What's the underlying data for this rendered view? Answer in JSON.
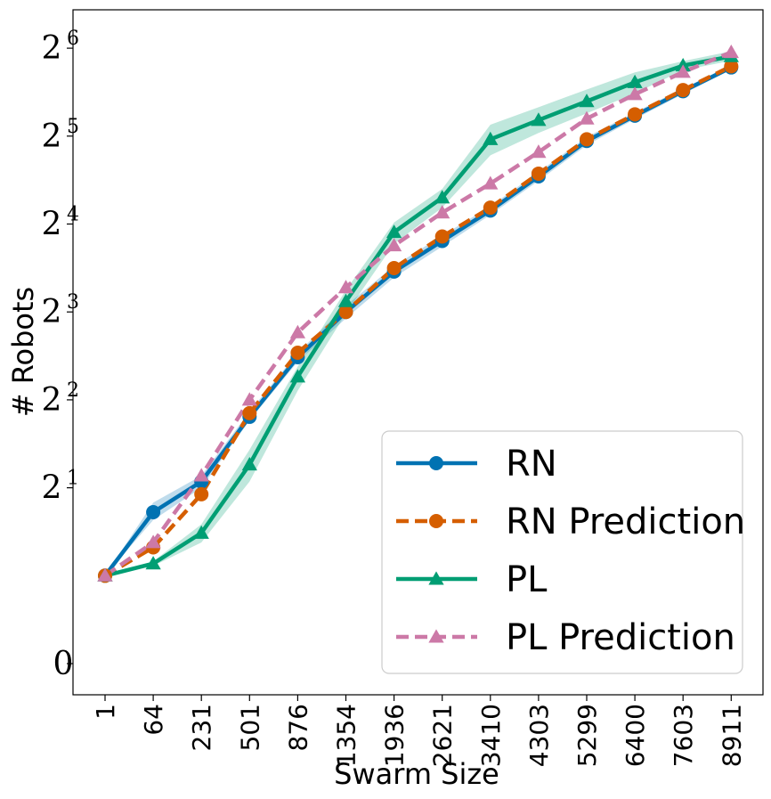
{
  "chart_data": {
    "type": "line",
    "xlabel": "Swarm Size",
    "ylabel": "# Robots",
    "categories": [
      "1",
      "64",
      "231",
      "501",
      "876",
      "1354",
      "1936",
      "2621",
      "3410",
      "4303",
      "5299",
      "6400",
      "7603",
      "8911"
    ],
    "y_ticks": [
      {
        "value": 0,
        "base": "0",
        "exp": ""
      },
      {
        "value": 2,
        "base": "2",
        "exp": "1"
      },
      {
        "value": 4,
        "base": "2",
        "exp": "2"
      },
      {
        "value": 8,
        "base": "2",
        "exp": "3"
      },
      {
        "value": 16,
        "base": "2",
        "exp": "4"
      },
      {
        "value": 32,
        "base": "2",
        "exp": "5"
      },
      {
        "value": 64,
        "base": "2",
        "exp": "6"
      }
    ],
    "y_scale": "symlog base 2",
    "ylim": [
      -0.2,
      90
    ],
    "grid": false,
    "legend_position": "lower-right",
    "series": [
      {
        "name": "RN",
        "color": "#0072B2",
        "line_style": "solid",
        "marker": "circle",
        "values": [
          1,
          1.65,
          2.1,
          3.5,
          5.6,
          8.0,
          11.0,
          14.0,
          17.8,
          23.3,
          30.8,
          37.6,
          45.6,
          55.0
        ],
        "band_lower": [
          1,
          1.55,
          2.0,
          3.4,
          5.4,
          7.6,
          10.5,
          13.4,
          17.2,
          22.5,
          29.8,
          36.6,
          44.6,
          54.0
        ],
        "band_upper": [
          1,
          1.78,
          2.2,
          3.65,
          5.8,
          8.4,
          11.5,
          14.6,
          18.4,
          24.1,
          31.8,
          38.6,
          46.6,
          56.0
        ]
      },
      {
        "name": "RN Prediction",
        "color": "#D55E00",
        "line_style": "dashed",
        "marker": "circle",
        "values": [
          1,
          1.25,
          1.9,
          3.6,
          5.8,
          8.0,
          11.3,
          14.5,
          18.2,
          23.8,
          31.2,
          38.0,
          46.0,
          55.5
        ]
      },
      {
        "name": "PL",
        "color": "#009E73",
        "line_style": "solid",
        "marker": "triangle",
        "values": [
          1,
          1.1,
          1.4,
          2.4,
          4.8,
          8.7,
          15.0,
          19.7,
          31.2,
          36.3,
          42.1,
          48.9,
          55.8,
          60.0
        ],
        "band_lower": [
          1,
          1.08,
          1.3,
          2.1,
          4.3,
          7.9,
          13.7,
          18.2,
          27.5,
          32.8,
          38.3,
          44.8,
          53.8,
          58.0
        ],
        "band_upper": [
          1,
          1.12,
          1.5,
          2.7,
          5.2,
          9.5,
          16.2,
          21.1,
          35.0,
          40.2,
          46.2,
          52.9,
          57.8,
          62.5
        ]
      },
      {
        "name": "PL Prediction",
        "color": "#CC79A7",
        "line_style": "dashed",
        "marker": "triangle",
        "values": [
          1,
          1.3,
          2.2,
          4.0,
          6.8,
          9.7,
          13.5,
          17.5,
          22.0,
          28.2,
          36.7,
          44.5,
          53.0,
          62.0
        ]
      }
    ]
  }
}
